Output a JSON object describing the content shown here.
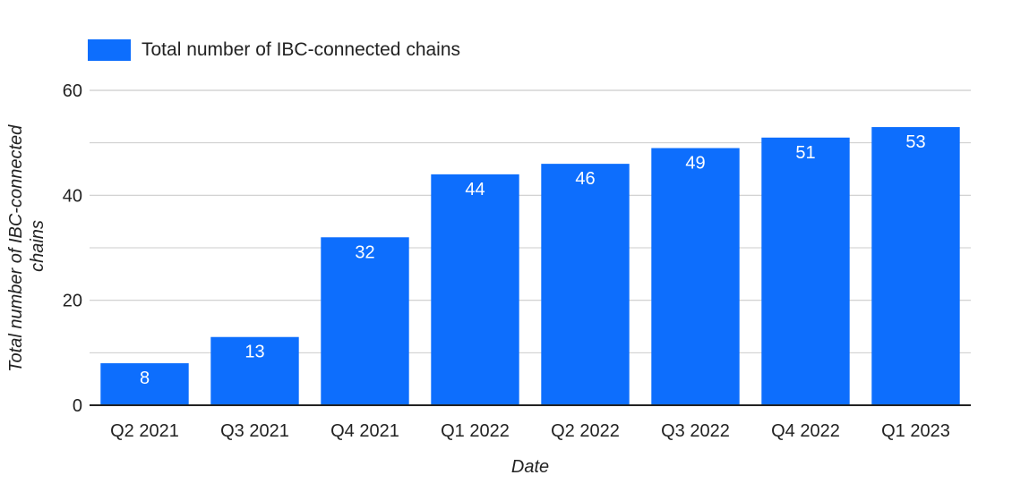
{
  "chart_data": {
    "type": "bar",
    "categories": [
      "Q2 2021",
      "Q3 2021",
      "Q4 2021",
      "Q1 2022",
      "Q2 2022",
      "Q3 2022",
      "Q4 2022",
      "Q1 2023"
    ],
    "series": [
      {
        "name": "Total number of IBC-connected chains",
        "values": [
          8,
          13,
          32,
          44,
          46,
          49,
          51,
          53
        ]
      }
    ],
    "xlabel": "Date",
    "ylabel_lines": [
      "Total number of IBC-connected",
      "chains"
    ],
    "ylim": [
      0,
      60
    ],
    "yticks": [
      0,
      20,
      40,
      60
    ],
    "grid": true,
    "legend_position": "top-left",
    "colors": {
      "bar": "#0d6efd",
      "grid": "#cccccc",
      "axis": "#222222"
    }
  }
}
